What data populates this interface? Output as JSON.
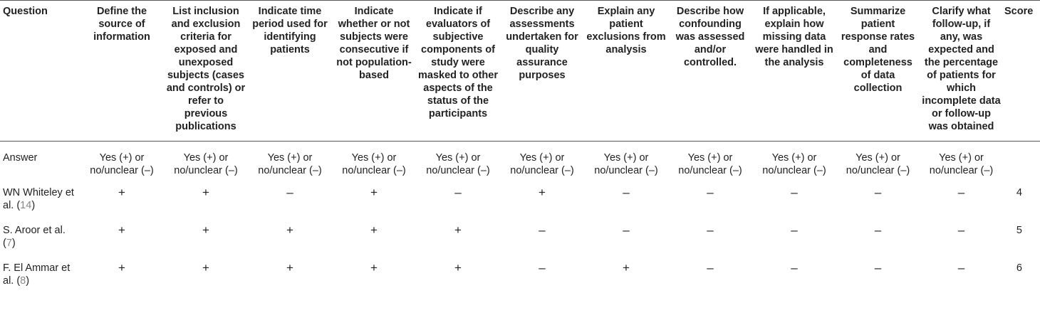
{
  "table": {
    "headers": [
      "Question",
      "Define the source of information",
      "List inclusion and exclusion criteria for exposed and unexposed subjects (cases and controls) or refer to previous publications",
      "Indicate time period used for identifying patients",
      "Indicate whether or not subjects were consecutive if not population-based",
      "Indicate if evaluators of subjective components of study were masked to other aspects of the status of the participants",
      "Describe any assessments undertaken for quality assurance purposes",
      "Explain any patient exclusions from analysis",
      "Describe how confounding was assessed and/or controlled.",
      "If applicable, explain how missing data were handled in the analysis",
      "Summarize patient response rates and completeness of data collection",
      "Clarify what follow-up, if any, was expected and the percentage of patients for which incomplete data or follow-up was obtained",
      "Score"
    ],
    "answer_row": {
      "label": "Answer",
      "value": "Yes (+) or no/unclear (–)"
    },
    "rows": [
      {
        "name": "WN Whiteley et al. (",
        "ref": "14",
        "suffix": ")",
        "marks": [
          "+",
          "+",
          "–",
          "+",
          "–",
          "+",
          "–",
          "–",
          "–",
          "–",
          "–"
        ],
        "score": "4"
      },
      {
        "name": "S. Aroor et al. (",
        "ref": "7",
        "suffix": ")",
        "marks": [
          "+",
          "+",
          "+",
          "+",
          "+",
          "–",
          "–",
          "–",
          "–",
          "–",
          "–"
        ],
        "score": "5"
      },
      {
        "name": "F. El Ammar et al. (",
        "ref": "8",
        "suffix": ")",
        "marks": [
          "+",
          "+",
          "+",
          "+",
          "+",
          "–",
          "+",
          "–",
          "–",
          "–",
          "–"
        ],
        "score": "6"
      }
    ]
  }
}
